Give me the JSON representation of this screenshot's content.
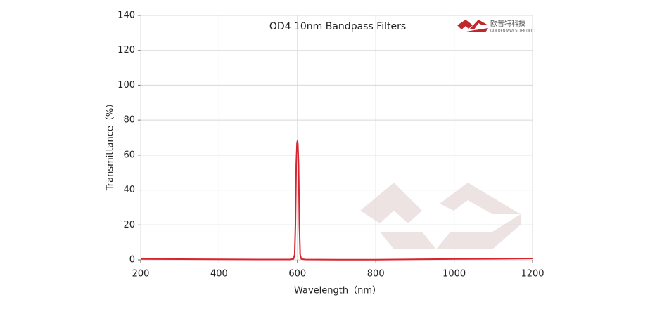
{
  "chart_data": {
    "type": "line",
    "title": "OD4 10nm Bandpass Filters",
    "xlabel": "Wavelength（nm）",
    "ylabel": "Transmittance（%）",
    "logo": {
      "name": "欧普特科技",
      "subtitle": "GOLDEN WAY SCIENTIFIC"
    },
    "x": [
      200,
      300,
      400,
      500,
      580,
      590,
      593,
      595,
      597,
      599,
      600,
      601,
      603,
      605,
      607,
      610,
      620,
      700,
      800,
      900,
      1000,
      1100,
      1200
    ],
    "values": [
      0.5,
      0.4,
      0.3,
      0.2,
      0.2,
      0.5,
      3,
      20,
      55,
      67,
      68,
      67,
      55,
      20,
      3,
      0.5,
      0.2,
      0.1,
      0.1,
      0.3,
      0.5,
      0.6,
      0.8
    ],
    "color": "#d6252e",
    "xlim": [
      200,
      1200
    ],
    "ylim": [
      0,
      140
    ],
    "xticks": [
      200,
      400,
      600,
      800,
      1000,
      1200
    ],
    "yticks": [
      0,
      20,
      40,
      60,
      80,
      100,
      120,
      140
    ],
    "grid": true
  }
}
